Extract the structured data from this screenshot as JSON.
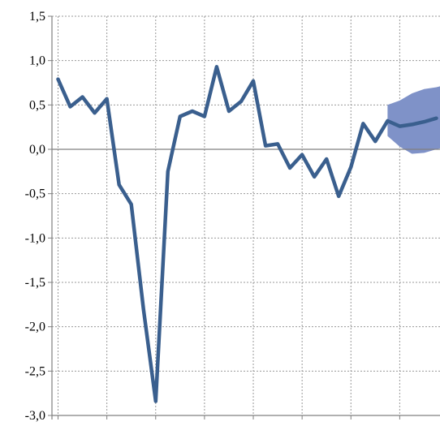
{
  "chart_data": {
    "type": "line",
    "title": "",
    "xlabel": "",
    "ylabel": "",
    "ylim": [
      -3.0,
      1.5
    ],
    "y_ticks": [
      1.5,
      1.0,
      0.5,
      0.0,
      -0.5,
      -1.0,
      -1.5,
      -2.0,
      -2.5,
      -3.0
    ],
    "y_tick_labels": [
      "1,5",
      "1,0",
      "0,5",
      "0,0",
      "-0,5",
      "-1,0",
      "-1,5",
      "-2,0",
      "-2,5",
      "-3,0"
    ],
    "x_ticks": [
      0,
      4,
      8,
      12,
      16,
      20,
      24,
      28,
      32
    ],
    "x_range": [
      -0.5,
      31.3
    ],
    "grid": true,
    "legend": "none",
    "colors": {
      "line": "#3a5f8e",
      "band": "#7f92c8",
      "grid": "#999999",
      "axis": "#808080"
    },
    "series": [
      {
        "values": [
          0.79,
          0.48,
          0.59,
          0.41,
          0.57,
          -0.4,
          -0.62,
          -1.8,
          -2.84,
          -0.25,
          0.37,
          0.43,
          0.37,
          0.93,
          0.43,
          0.54,
          0.77,
          0.04,
          0.06,
          -0.21,
          -0.06,
          -0.31,
          -0.11,
          -0.53,
          -0.2,
          0.29,
          0.09,
          0.32,
          0.26,
          0.28,
          0.31,
          0.35
        ]
      }
    ],
    "band": {
      "x": [
        27,
        28,
        29,
        30,
        31,
        31.3
      ],
      "upper": [
        0.5,
        0.55,
        0.63,
        0.68,
        0.7,
        0.71
      ],
      "lower": [
        0.15,
        0.03,
        -0.05,
        -0.04,
        0.0,
        0.01
      ]
    }
  }
}
